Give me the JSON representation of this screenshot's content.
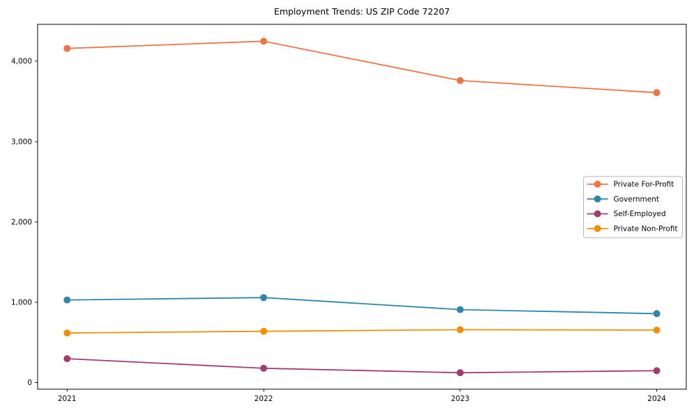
{
  "chart_data": {
    "type": "line",
    "title": "Employment Trends: US ZIP Code 72207",
    "xlabel": "",
    "ylabel": "",
    "x": [
      2021,
      2022,
      2023,
      2024
    ],
    "x_tick_labels": [
      "2021",
      "2022",
      "2023",
      "2024"
    ],
    "y_ticks": [
      0,
      1000,
      2000,
      3000,
      4000
    ],
    "y_tick_labels": [
      "0",
      "1,000",
      "2,000",
      "3,000",
      "4,000"
    ],
    "xlim": [
      2020.85,
      2024.15
    ],
    "ylim": [
      -80,
      4460
    ],
    "grid": false,
    "legend_position": "center-right",
    "series": [
      {
        "name": "Private For-Profit",
        "color": "#ec7445",
        "values": [
          4160,
          4250,
          3760,
          3610
        ]
      },
      {
        "name": "Government",
        "color": "#2e86ab",
        "values": [
          1030,
          1060,
          910,
          860
        ]
      },
      {
        "name": "Self-Employed",
        "color": "#a23b72",
        "values": [
          300,
          180,
          125,
          150
        ]
      },
      {
        "name": "Private Non-Profit",
        "color": "#f18f01",
        "values": [
          620,
          640,
          660,
          655
        ]
      }
    ],
    "axis_color": "#000000",
    "background_color": "#ffffff"
  }
}
